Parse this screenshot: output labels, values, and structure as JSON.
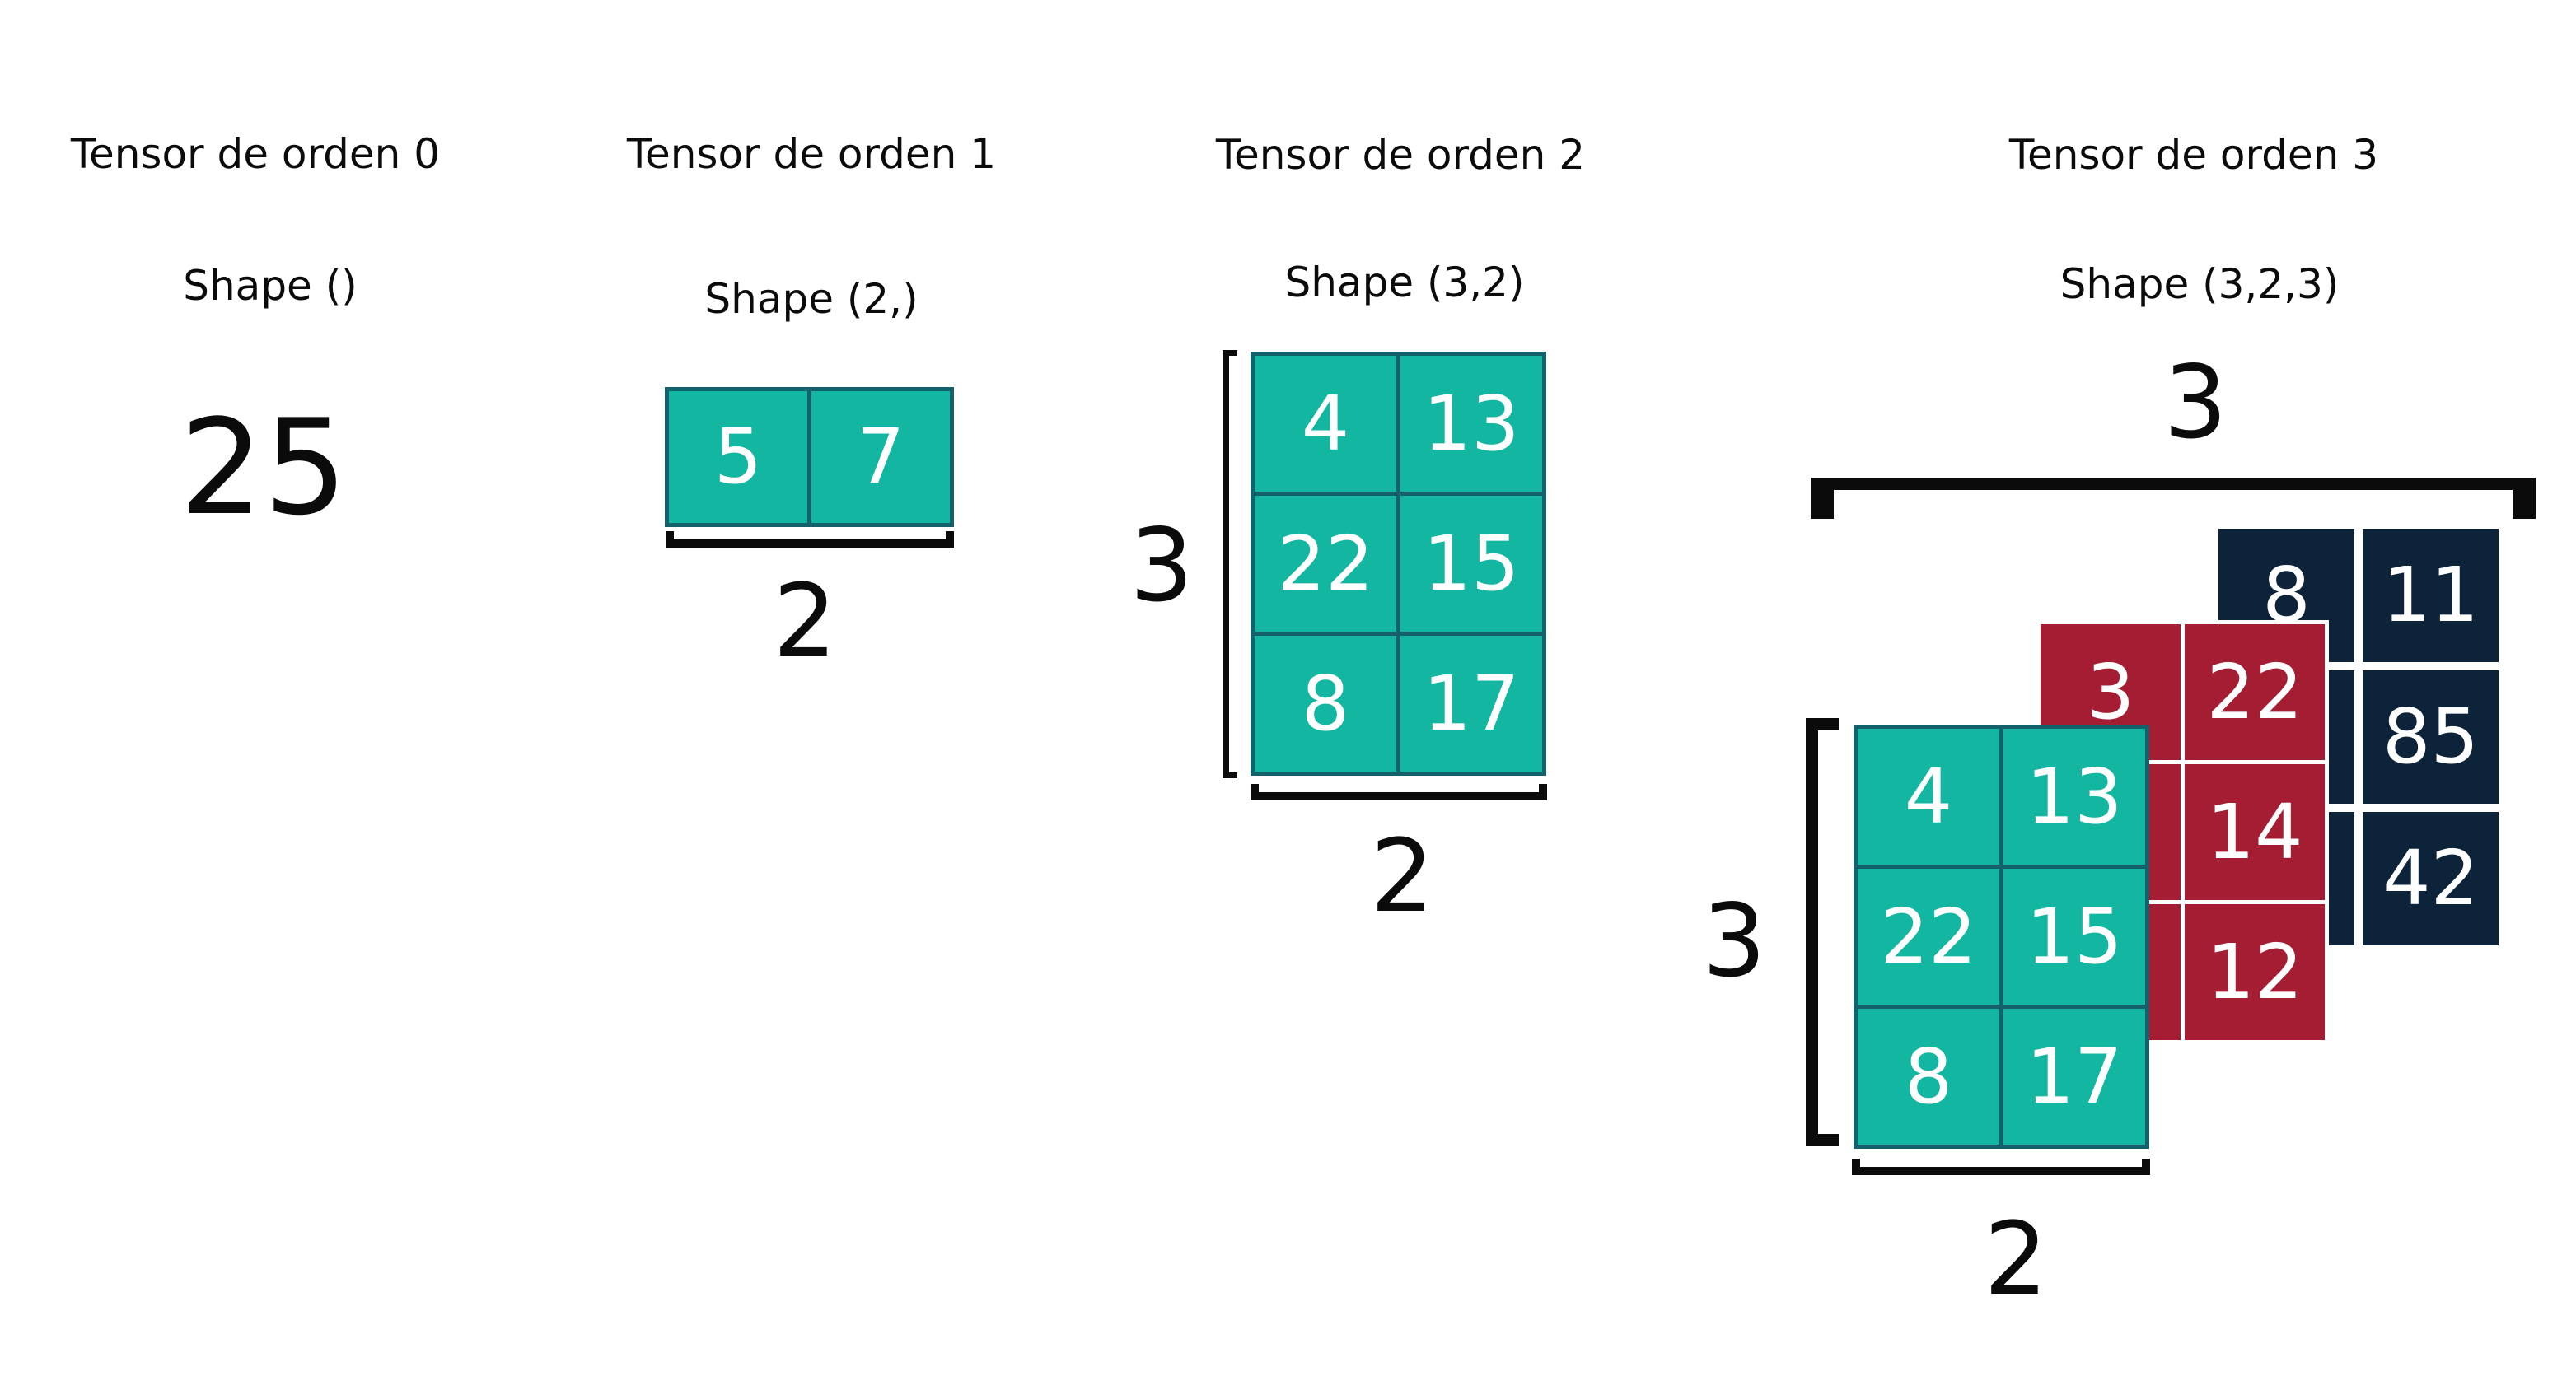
{
  "colors": {
    "teal": "#13b6a0",
    "teal_border": "#14616b",
    "red": "#a51d32",
    "navy": "#0c2339",
    "text": "#0b0b0b"
  },
  "tensor0": {
    "title": "Tensor de orden 0",
    "shape": "Shape ()",
    "value": "25"
  },
  "tensor1": {
    "title": "Tensor de orden 1",
    "shape": "Shape (2,)",
    "values": [
      "5",
      "7"
    ],
    "dim_label": "2"
  },
  "tensor2": {
    "title": "Tensor de orden 2",
    "shape": "Shape (3,2)",
    "rows": [
      [
        "4",
        "13"
      ],
      [
        "22",
        "15"
      ],
      [
        "8",
        "17"
      ]
    ],
    "row_dim_label": "3",
    "col_dim_label": "2"
  },
  "tensor3": {
    "title": "Tensor de orden 3",
    "shape": "Shape (3,2,3)",
    "depth_dim_label": "3",
    "row_dim_label": "3",
    "col_dim_label": "2",
    "front": [
      [
        "4",
        "13"
      ],
      [
        "22",
        "15"
      ],
      [
        "8",
        "17"
      ]
    ],
    "middle": [
      [
        "3",
        "22"
      ],
      [
        "",
        "14"
      ],
      [
        "",
        "12"
      ]
    ],
    "back": [
      [
        "8",
        "11"
      ],
      [
        "",
        "85"
      ],
      [
        "",
        "42"
      ]
    ]
  }
}
